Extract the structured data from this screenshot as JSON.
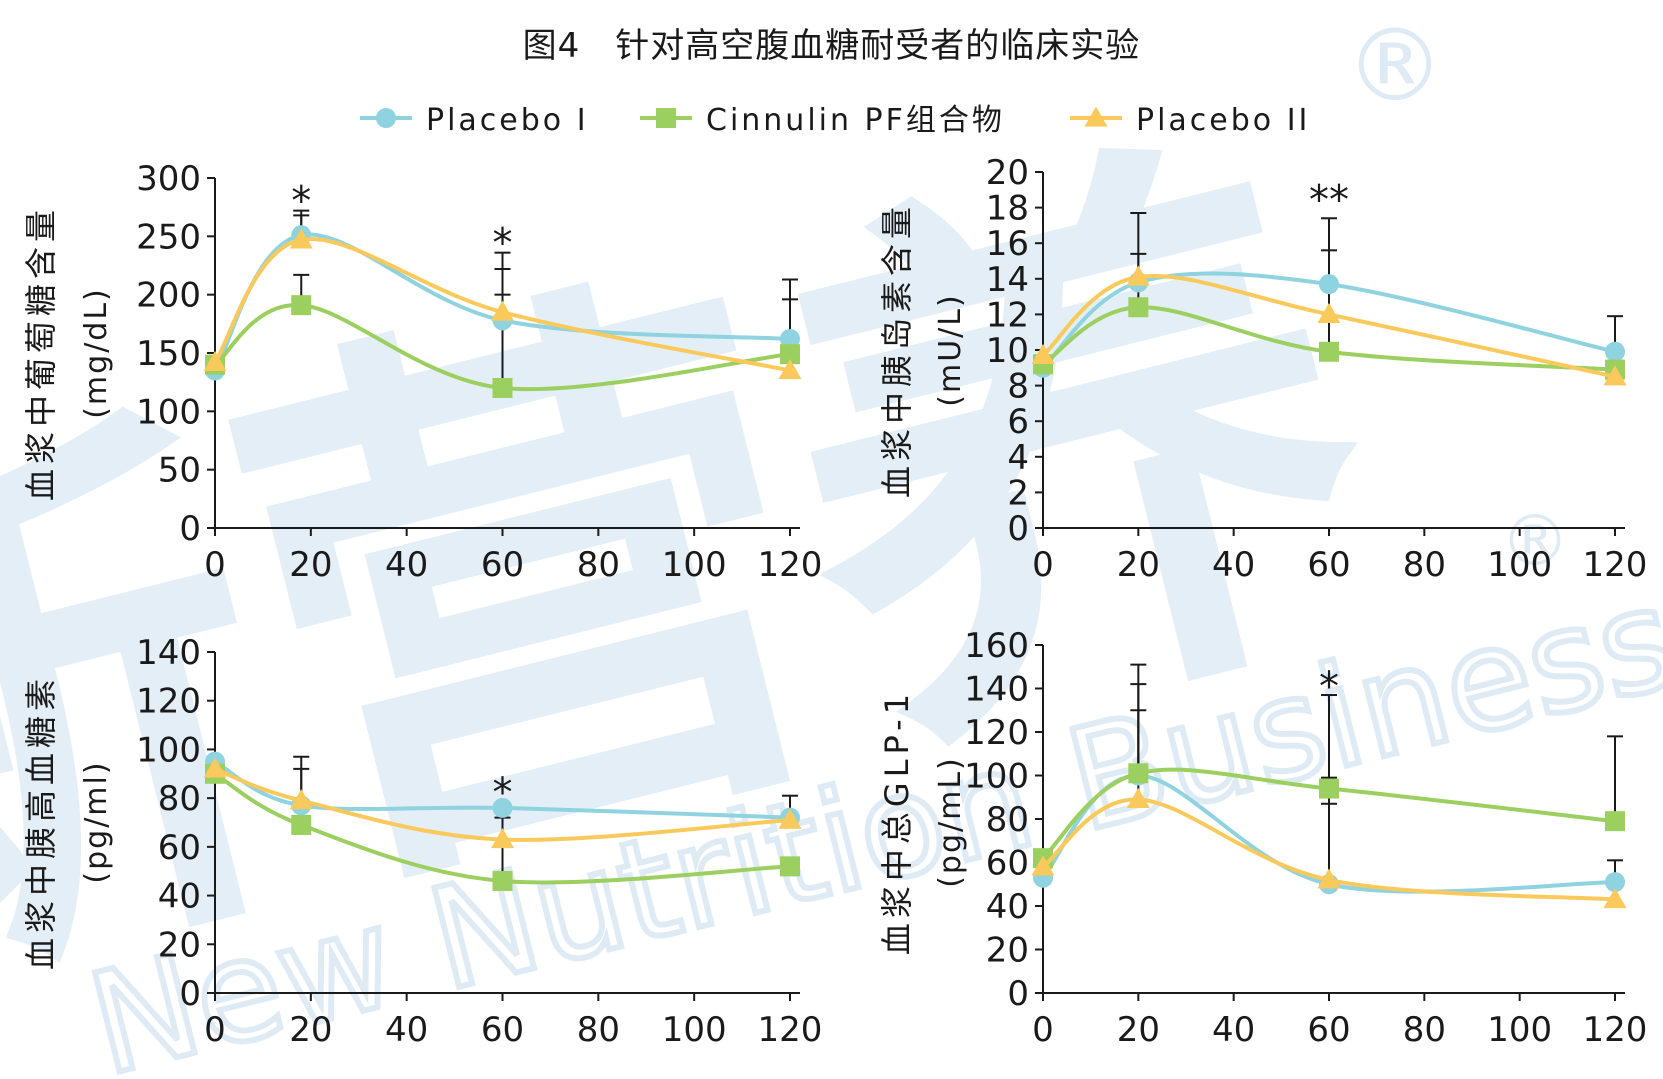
{
  "title": "图4　针对高空腹血糖耐受者的临床实验",
  "colors": {
    "placebo1": "#8ed3df",
    "cinnulin": "#9bcf5f",
    "placebo2": "#f9c95b",
    "axis": "#1a1a1a",
    "watermark": "#dbe9f4"
  },
  "legend": [
    {
      "name": "Placebo I",
      "marker": "circle",
      "color_key": "placebo1"
    },
    {
      "name": "Cinnulin PF组合物",
      "marker": "square",
      "color_key": "cinnulin"
    },
    {
      "name": "Placebo II",
      "marker": "triangle",
      "color_key": "placebo2"
    }
  ],
  "watermark": {
    "brand_cn": "新营养",
    "brand_en": "New Nutrition Business",
    "mark": "®"
  },
  "chart_data": [
    {
      "type": "line",
      "ylabel": "血浆中葡萄糖含量",
      "yunit": "(mg/dL)",
      "xlim": [
        0,
        120
      ],
      "xticks": [
        0,
        20,
        40,
        60,
        80,
        100,
        120
      ],
      "ylim": [
        0,
        300
      ],
      "yticks": [
        0,
        50,
        100,
        150,
        200,
        250,
        300
      ],
      "series": [
        {
          "name": "Placebo I",
          "color_key": "placebo1",
          "marker": "circle",
          "x": [
            0,
            18,
            60,
            120
          ],
          "y": [
            135,
            251,
            178,
            162
          ]
        },
        {
          "name": "Cinnulin PF组合物",
          "color_key": "cinnulin",
          "marker": "square",
          "x": [
            0,
            18,
            60,
            120
          ],
          "y": [
            140,
            191,
            120,
            149
          ]
        },
        {
          "name": "Placebo II",
          "color_key": "placebo2",
          "marker": "triangle",
          "x": [
            0,
            18,
            60,
            120
          ],
          "y": [
            142,
            247,
            185,
            135
          ]
        }
      ],
      "error_bars": [
        {
          "x": 18,
          "low": 191,
          "high": 217
        },
        {
          "x": 18,
          "low": 251,
          "high": 268
        },
        {
          "x": 18,
          "low": 247,
          "high": 272
        },
        {
          "x": 60,
          "low": 120,
          "high": 236
        },
        {
          "x": 60,
          "low": 185,
          "high": 222
        },
        {
          "x": 60,
          "low": 178,
          "high": 200
        },
        {
          "x": 120,
          "low": 162,
          "high": 213
        },
        {
          "x": 120,
          "low": 149,
          "high": 196
        }
      ],
      "annotations": [
        {
          "x": 18,
          "y": 286,
          "text": "*"
        },
        {
          "x": 60,
          "y": 250,
          "text": "*"
        }
      ]
    },
    {
      "type": "line",
      "ylabel": "血浆中胰岛素含量",
      "yunit": "(mU/L)",
      "xlim": [
        0,
        120
      ],
      "xticks": [
        0,
        20,
        40,
        60,
        80,
        100,
        120
      ],
      "ylim": [
        0,
        20
      ],
      "yticks": [
        0,
        2,
        4,
        6,
        8,
        10,
        12,
        14,
        16,
        18,
        20
      ],
      "series": [
        {
          "name": "Placebo I",
          "color_key": "placebo1",
          "marker": "circle",
          "x": [
            0,
            20,
            60,
            120
          ],
          "y": [
            9.0,
            13.8,
            13.7,
            9.9
          ]
        },
        {
          "name": "Cinnulin PF组合物",
          "color_key": "cinnulin",
          "marker": "square",
          "x": [
            0,
            20,
            60,
            120
          ],
          "y": [
            9.2,
            12.4,
            9.9,
            8.9
          ]
        },
        {
          "name": "Placebo II",
          "color_key": "placebo2",
          "marker": "triangle",
          "x": [
            0,
            20,
            60,
            120
          ],
          "y": [
            9.7,
            14.1,
            12.0,
            8.5
          ]
        }
      ],
      "error_bars": [
        {
          "x": 20,
          "low": 14.1,
          "high": 17.7
        },
        {
          "x": 20,
          "low": 12.4,
          "high": 15.4
        },
        {
          "x": 60,
          "low": 13.7,
          "high": 17.4
        },
        {
          "x": 60,
          "low": 9.9,
          "high": 15.6
        },
        {
          "x": 120,
          "low": 9.9,
          "high": 11.9
        }
      ],
      "annotations": [
        {
          "x": 60,
          "y": 18.8,
          "text": "**"
        }
      ]
    },
    {
      "type": "line",
      "ylabel": "血浆中胰高血糖素",
      "yunit": "(pg/ml)",
      "xlim": [
        0,
        120
      ],
      "xticks": [
        0,
        20,
        40,
        60,
        80,
        100,
        120
      ],
      "ylim": [
        0,
        140
      ],
      "yticks": [
        0,
        20,
        40,
        60,
        80,
        100,
        120,
        140
      ],
      "series": [
        {
          "name": "Placebo I",
          "color_key": "placebo1",
          "marker": "circle",
          "x": [
            0,
            18,
            60,
            120
          ],
          "y": [
            95,
            77,
            76,
            72
          ]
        },
        {
          "name": "Cinnulin PF组合物",
          "color_key": "cinnulin",
          "marker": "square",
          "x": [
            0,
            18,
            60,
            120
          ],
          "y": [
            90,
            69,
            46,
            52
          ]
        },
        {
          "name": "Placebo II",
          "color_key": "placebo2",
          "marker": "triangle",
          "x": [
            0,
            18,
            60,
            120
          ],
          "y": [
            92,
            79,
            63,
            71
          ]
        }
      ],
      "error_bars": [
        {
          "x": 18,
          "low": 79,
          "high": 97
        },
        {
          "x": 18,
          "low": 77,
          "high": 92
        },
        {
          "x": 60,
          "low": 46,
          "high": 72
        },
        {
          "x": 120,
          "low": 72,
          "high": 81
        }
      ],
      "annotations": [
        {
          "x": 60,
          "y": 85,
          "text": "*"
        }
      ]
    },
    {
      "type": "line",
      "ylabel": "血浆中总GLP-1",
      "yunit": "(pg/mL)",
      "xlim": [
        0,
        120
      ],
      "xticks": [
        0,
        20,
        40,
        60,
        80,
        100,
        120
      ],
      "ylim": [
        0,
        160
      ],
      "yticks": [
        0,
        20,
        40,
        60,
        80,
        100,
        120,
        140,
        160
      ],
      "series": [
        {
          "name": "Placebo I",
          "color_key": "placebo1",
          "marker": "circle",
          "x": [
            0,
            20,
            60,
            120
          ],
          "y": [
            53,
            100,
            50,
            51
          ]
        },
        {
          "name": "Cinnulin PF组合物",
          "color_key": "cinnulin",
          "marker": "square",
          "x": [
            0,
            20,
            60,
            120
          ],
          "y": [
            62,
            101,
            94,
            79
          ]
        },
        {
          "name": "Placebo II",
          "color_key": "placebo2",
          "marker": "triangle",
          "x": [
            0,
            20,
            60,
            120
          ],
          "y": [
            58,
            89,
            52,
            43
          ]
        }
      ],
      "error_bars": [
        {
          "x": 20,
          "low": 101,
          "high": 151
        },
        {
          "x": 20,
          "low": 100,
          "high": 142
        },
        {
          "x": 20,
          "low": 89,
          "high": 130
        },
        {
          "x": 60,
          "low": 94,
          "high": 137
        },
        {
          "x": 60,
          "low": 52,
          "high": 99
        },
        {
          "x": 60,
          "low": 50,
          "high": 87
        },
        {
          "x": 120,
          "low": 79,
          "high": 118
        },
        {
          "x": 120,
          "low": 51,
          "high": 61
        }
      ],
      "annotations": [
        {
          "x": 60,
          "y": 144,
          "text": "*"
        }
      ]
    }
  ]
}
